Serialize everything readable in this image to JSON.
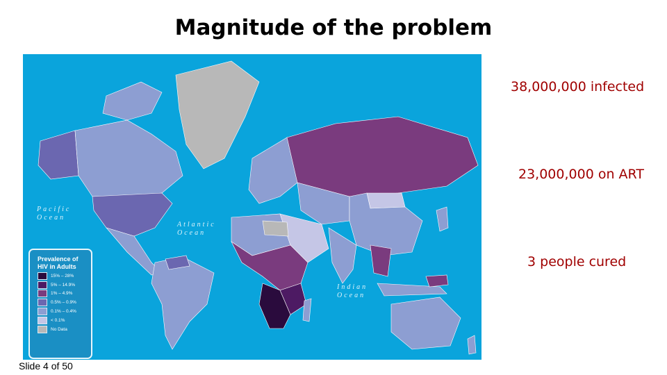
{
  "slide": {
    "title": "Magnitude of the problem",
    "slide_number": "Slide 4 of 50"
  },
  "stats": [
    "38,000,000 infected",
    "23,000,000 on ART",
    "3 people cured"
  ],
  "map": {
    "ocean_labels": {
      "pacific": "Pacific Ocean",
      "atlantic": "Atlantic Ocean",
      "indian": "Indian Ocean"
    },
    "legend": {
      "title_line1": "Prevalence of",
      "title_line2": "HIV in Adults",
      "items": [
        {
          "label": "15% – 28%",
          "color": "#2a0b3d"
        },
        {
          "label": "5% – 14.9%",
          "color": "#4d1a63"
        },
        {
          "label": "1% – 4.9%",
          "color": "#7a3b7e"
        },
        {
          "label": "0.5% – 0.9%",
          "color": "#6b67b0"
        },
        {
          "label": "0.1% – 0.4%",
          "color": "#8d9ed2"
        },
        {
          "label": "< 0.1%",
          "color": "#c5c6e6"
        },
        {
          "label": "No Data",
          "color": "#b8b8b8"
        }
      ]
    },
    "colors": {
      "ocean": "#0aa4dc",
      "stat_text": "#a00000"
    }
  }
}
